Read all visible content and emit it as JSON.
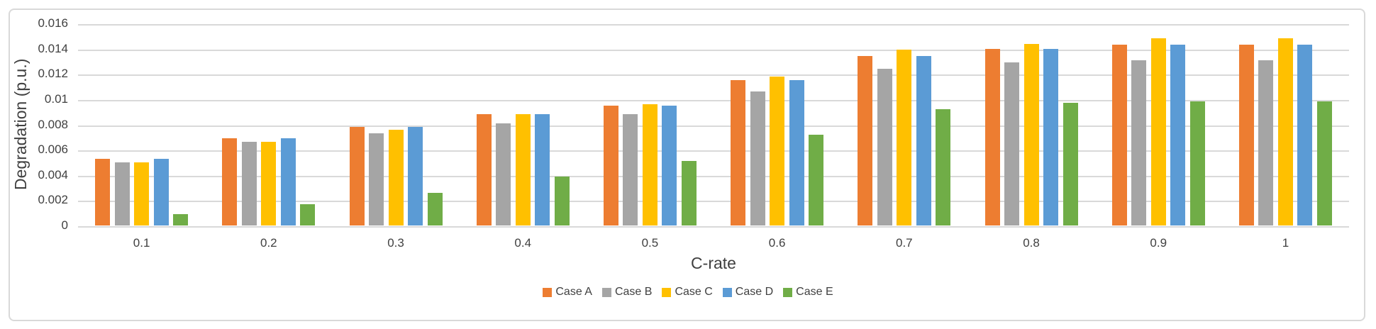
{
  "chart_data": {
    "type": "bar",
    "title": "",
    "xlabel": "C-rate",
    "ylabel": "Degradation (p.u.)",
    "categories": [
      "0.1",
      "0.2",
      "0.3",
      "0.4",
      "0.5",
      "0.6",
      "0.7",
      "0.8",
      "0.9",
      "1"
    ],
    "series": [
      {
        "name": "Case A",
        "color": "#ED7D31",
        "values": [
          0.0053,
          0.0069,
          0.0078,
          0.0088,
          0.0095,
          0.0115,
          0.0134,
          0.014,
          0.0143,
          0.0143
        ]
      },
      {
        "name": "Case B",
        "color": "#A5A5A5",
        "values": [
          0.005,
          0.0066,
          0.0073,
          0.0081,
          0.0088,
          0.0106,
          0.0124,
          0.0129,
          0.0131,
          0.0131
        ]
      },
      {
        "name": "Case C",
        "color": "#FFC000",
        "values": [
          0.005,
          0.0066,
          0.0076,
          0.0088,
          0.0096,
          0.0118,
          0.0139,
          0.0144,
          0.0148,
          0.0148
        ]
      },
      {
        "name": "Case D",
        "color": "#5B9BD5",
        "values": [
          0.0053,
          0.0069,
          0.0078,
          0.0088,
          0.0095,
          0.0115,
          0.0134,
          0.014,
          0.0143,
          0.0143
        ]
      },
      {
        "name": "Case E",
        "color": "#70AD47",
        "values": [
          0.0009,
          0.0017,
          0.0026,
          0.0039,
          0.0051,
          0.0072,
          0.0092,
          0.0097,
          0.0098,
          0.0098
        ]
      }
    ],
    "ylim": [
      0,
      0.016
    ],
    "ytick_step": 0.002,
    "ytick_labels": [
      "0",
      "0.002",
      "0.004",
      "0.006",
      "0.008",
      "0.01",
      "0.012",
      "0.014",
      "0.016"
    ],
    "grid": true,
    "legend_position": "bottom"
  },
  "frame": {
    "border_color": "#D9D9D9",
    "background": "#FFFFFF",
    "gridline_color": "#D9D9D9",
    "text_color": "#404040"
  }
}
